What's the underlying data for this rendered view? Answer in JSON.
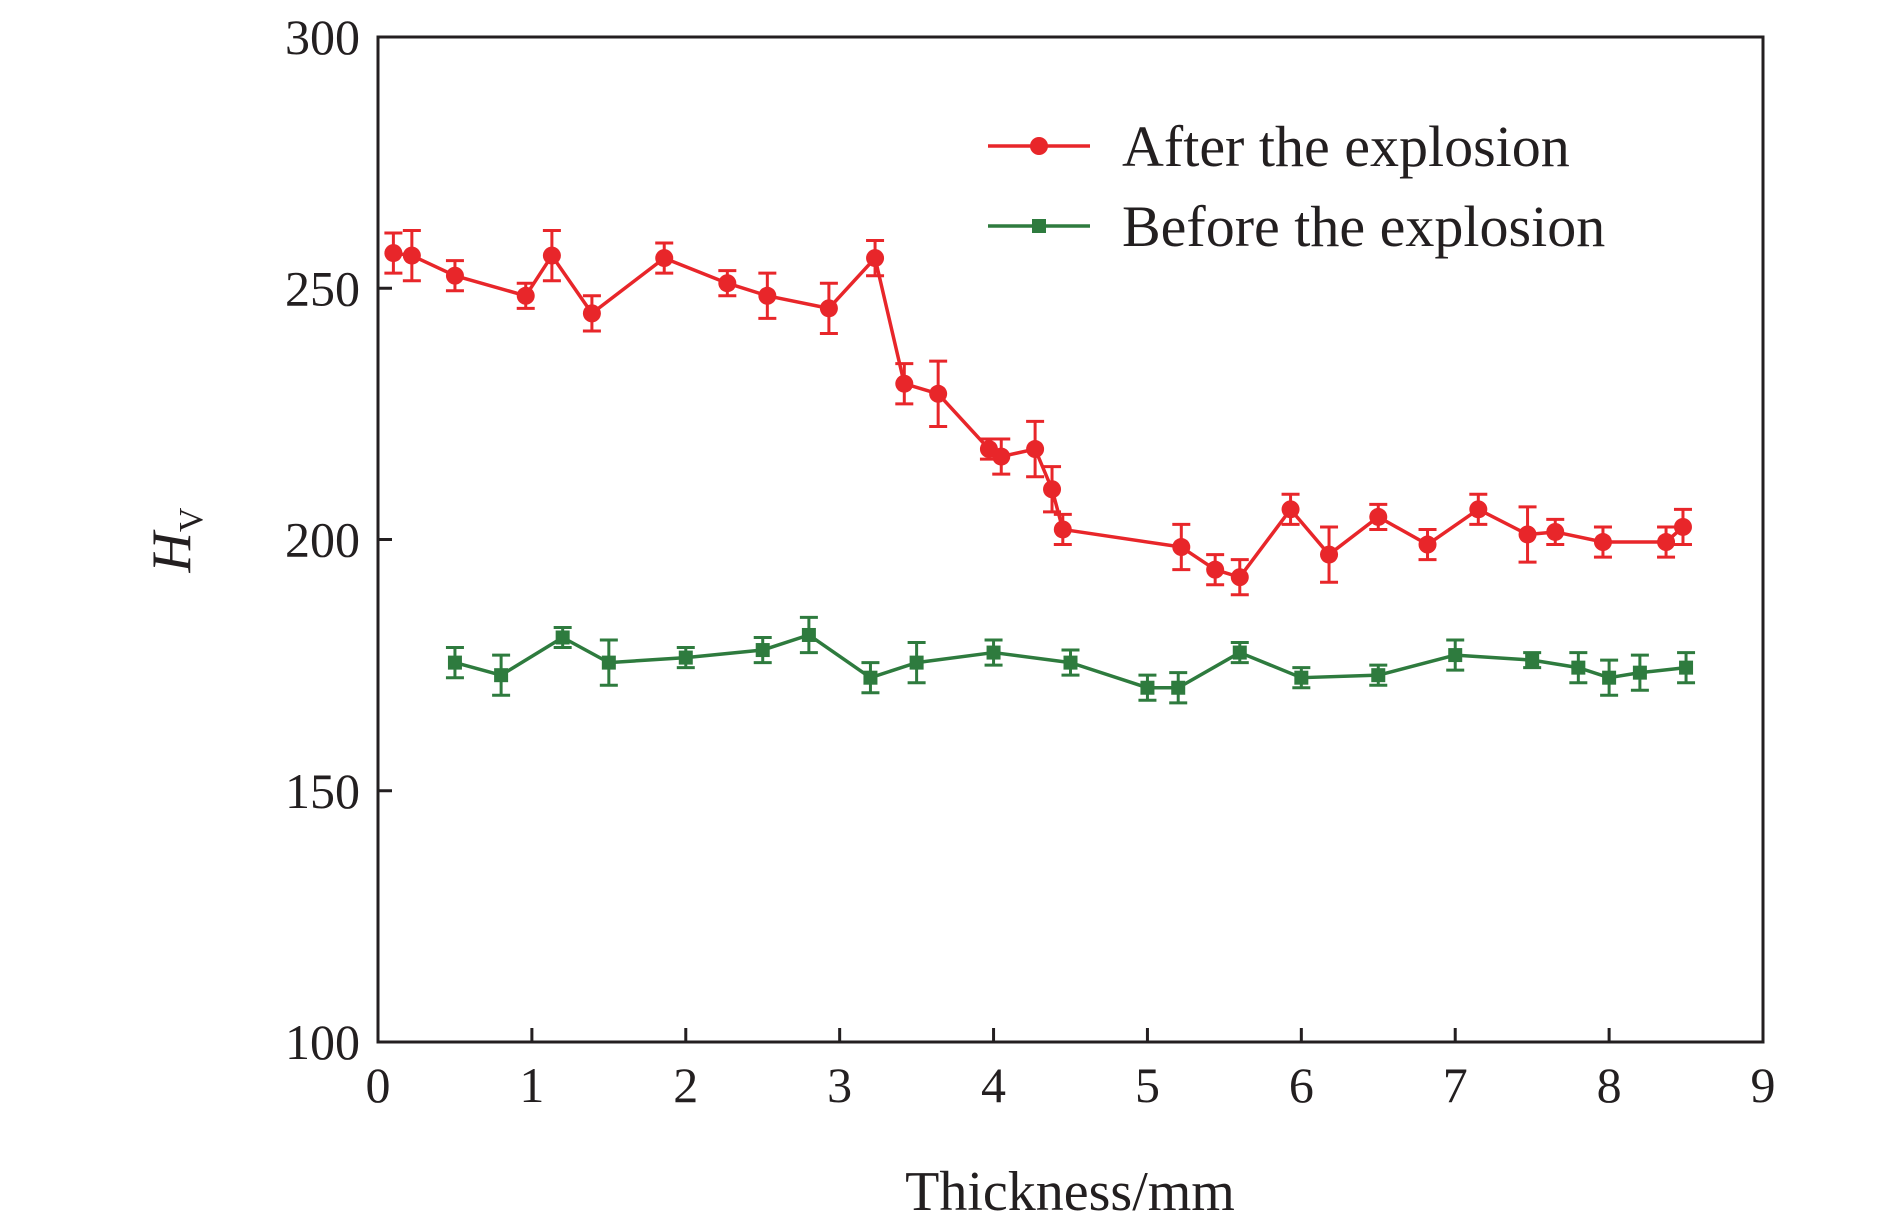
{
  "chart_data": {
    "type": "line",
    "xlabel": "Thickness/mm",
    "ylabel_main": "H",
    "ylabel_sub": "V",
    "xlim": [
      0,
      9
    ],
    "ylim": [
      100,
      300
    ],
    "xticks": [
      0,
      1,
      2,
      3,
      4,
      5,
      6,
      7,
      8,
      9
    ],
    "yticks": [
      100,
      150,
      200,
      250,
      300
    ],
    "grid": false,
    "legend_position": "top-right",
    "series": [
      {
        "name": "After the explosion",
        "color": "#e8262a",
        "marker": "circle",
        "x": [
          0.1,
          0.22,
          0.5,
          0.96,
          1.13,
          1.39,
          1.86,
          2.27,
          2.53,
          2.93,
          3.23,
          3.42,
          3.64,
          3.97,
          4.05,
          4.27,
          4.38,
          4.45,
          5.22,
          5.44,
          5.6,
          5.93,
          6.18,
          6.5,
          6.82,
          7.15,
          7.47,
          7.65,
          7.96,
          8.37,
          8.48
        ],
        "y": [
          257,
          256.5,
          252.5,
          248.5,
          256.5,
          245,
          256,
          251,
          248.5,
          246,
          256,
          231,
          229,
          218,
          216.5,
          218,
          210,
          202,
          198.5,
          194,
          192.5,
          206,
          197,
          204.5,
          199,
          206,
          201,
          201.5,
          199.5,
          199.5,
          202.5
        ],
        "err": [
          4,
          5,
          3,
          2.5,
          5,
          3.5,
          3,
          2.5,
          4.5,
          5,
          3.5,
          4,
          6.5,
          2,
          3.5,
          5.5,
          4.5,
          3,
          4.5,
          3,
          3.5,
          3,
          5.5,
          2.5,
          3,
          3,
          5.5,
          2.5,
          3,
          3,
          3.5
        ]
      },
      {
        "name": "Before the explosion",
        "color": "#2e7b3e",
        "marker": "square",
        "x": [
          0.5,
          0.8,
          1.2,
          1.5,
          2.0,
          2.5,
          2.8,
          3.2,
          3.5,
          4.0,
          4.5,
          5.0,
          5.2,
          5.6,
          6.0,
          6.5,
          7.0,
          7.5,
          7.8,
          8.0,
          8.2,
          8.5
        ],
        "y": [
          175.5,
          173,
          180.5,
          175.5,
          176.5,
          178,
          181,
          172.5,
          175.5,
          177.5,
          175.5,
          170.5,
          170.5,
          177.5,
          172.5,
          173,
          177,
          176,
          174.5,
          172.5,
          173.5,
          174.5
        ],
        "err": [
          3,
          4,
          2,
          4.5,
          2,
          2.5,
          3.5,
          3,
          4,
          2.5,
          2.5,
          2.5,
          3,
          2,
          2,
          2,
          3,
          1.5,
          3,
          3.5,
          3.5,
          3
        ]
      }
    ]
  }
}
